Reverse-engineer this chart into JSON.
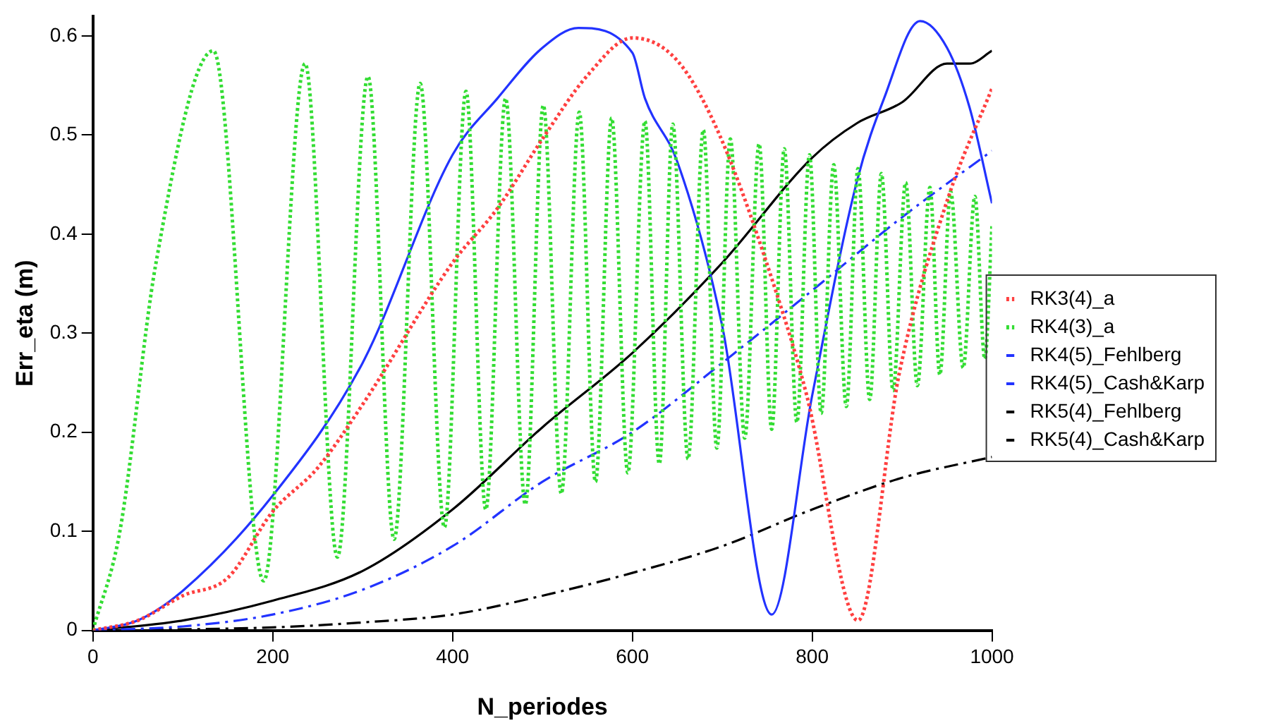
{
  "chart_data": {
    "type": "line",
    "xlabel": "N_periodes",
    "ylabel": "Err_eta (m)",
    "xlim": [
      0,
      1000
    ],
    "xticks": [
      0,
      200,
      400,
      600,
      800,
      1000
    ],
    "ylim": [
      0,
      0.62
    ],
    "yticks": [
      0,
      0.1,
      0.2,
      0.3,
      0.4,
      0.5,
      0.6
    ],
    "grid": false,
    "legend": "right",
    "marker": "none",
    "series": [
      {
        "name": "RK3(4)_a",
        "color": "#ff4040",
        "line_style": "dotted",
        "x": [
          0,
          50,
          100,
          150,
          200,
          250,
          300,
          400,
          450,
          500,
          550,
          600,
          650,
          697,
          764,
          794,
          851,
          897,
          951,
          1000
        ],
        "values": [
          0,
          0.01,
          0.035,
          0.053,
          0.12,
          0.164,
          0.228,
          0.371,
          0.426,
          0.496,
          0.56,
          0.598,
          0.575,
          0.5,
          0.33,
          0.237,
          0.01,
          0.26,
          0.436,
          0.547
        ]
      },
      {
        "name": "RK4(3)_a",
        "color": "#33dd33",
        "line_style": "dotted",
        "x": [
          0,
          30,
          70,
          134,
          190,
          236,
          272,
          306,
          335,
          364,
          391,
          415,
          437,
          459,
          481,
          501,
          521,
          541,
          559,
          577,
          595,
          614,
          630,
          645,
          662,
          679,
          694,
          709,
          725,
          741,
          755,
          769,
          783,
          797,
          810,
          824,
          838,
          851,
          864,
          877,
          890,
          904,
          917,
          931,
          942,
          954,
          968,
          981,
          992,
          1000
        ],
        "values": [
          0,
          0.1,
          0.37,
          0.585,
          0.05,
          0.572,
          0.074,
          0.559,
          0.092,
          0.552,
          0.104,
          0.544,
          0.122,
          0.537,
          0.127,
          0.53,
          0.138,
          0.523,
          0.15,
          0.517,
          0.159,
          0.514,
          0.168,
          0.511,
          0.173,
          0.505,
          0.184,
          0.496,
          0.194,
          0.491,
          0.203,
          0.486,
          0.21,
          0.48,
          0.219,
          0.47,
          0.226,
          0.466,
          0.233,
          0.461,
          0.242,
          0.452,
          0.247,
          0.447,
          0.258,
          0.443,
          0.265,
          0.438,
          0.274,
          0.408
        ]
      },
      {
        "name": "RK4(5)_Fehlberg",
        "color": "#2233ff",
        "line_style": "solid",
        "x": [
          0,
          50,
          100,
          200,
          300,
          400,
          450,
          500,
          540,
          600,
          614,
          650,
          700,
          755,
          800,
          850,
          880,
          920,
          950,
          975,
          1000
        ],
        "values": [
          0,
          0.01,
          0.04,
          0.136,
          0.27,
          0.48,
          0.537,
          0.588,
          0.608,
          0.583,
          0.537,
          0.473,
          0.307,
          0.016,
          0.237,
          0.454,
          0.537,
          0.615,
          0.588,
          0.528,
          0.431
        ]
      },
      {
        "name": "RK4(5)_Cash&Karp",
        "color": "#2233ff",
        "line_style": "dashed",
        "x": [
          0,
          100,
          200,
          300,
          400,
          500,
          600,
          700,
          800,
          900,
          1000
        ],
        "values": [
          0,
          0.004,
          0.016,
          0.041,
          0.085,
          0.15,
          0.2,
          0.27,
          0.343,
          0.417,
          0.484
        ]
      },
      {
        "name": "RK5(4)_Fehlberg",
        "color": "#000000",
        "line_style": "solid",
        "x": [
          0,
          100,
          200,
          300,
          400,
          500,
          600,
          700,
          800,
          850,
          900,
          950,
          975,
          1000
        ],
        "values": [
          0,
          0.01,
          0.03,
          0.06,
          0.122,
          0.205,
          0.28,
          0.371,
          0.477,
          0.512,
          0.533,
          0.572,
          0.572,
          0.585
        ]
      },
      {
        "name": "RK5(4)_Cash&Karp",
        "color": "#000000",
        "line_style": "dashed",
        "x": [
          0,
          200,
          300,
          400,
          500,
          600,
          700,
          800,
          900,
          1000
        ],
        "values": [
          0,
          0.003,
          0.008,
          0.016,
          0.035,
          0.058,
          0.085,
          0.122,
          0.154,
          0.175
        ]
      }
    ]
  }
}
